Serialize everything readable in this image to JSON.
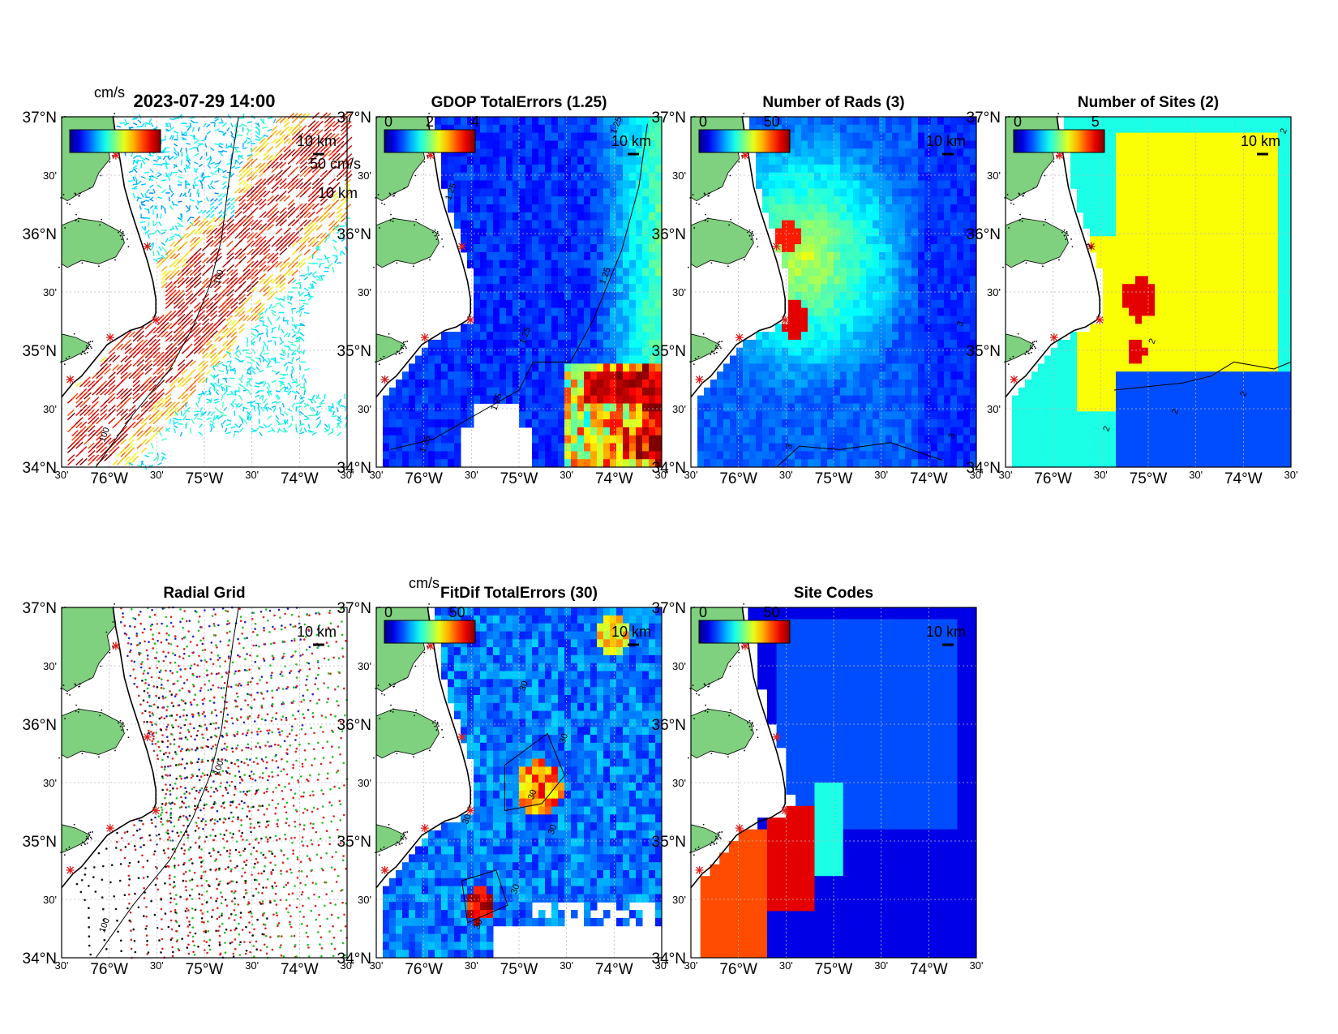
{
  "figure": {
    "timestamp": "2023-07-29 14:00"
  },
  "axes": {
    "lat_labels": [
      "37°N",
      "30'",
      "36°N",
      "30'",
      "35°N",
      "30'",
      "34°N"
    ],
    "lon_labels": [
      "30'",
      "76°W",
      "30'",
      "75°W",
      "30'",
      "74°W",
      "30'"
    ]
  },
  "map_colors": {
    "land": "#7fd07f",
    "water": "#ffffff",
    "coast": "#000000",
    "site_marker": "#e02020"
  },
  "panels": [
    {
      "id": "total-vectors",
      "title": "2023-07-29 14:00",
      "cbar_unit": "cm/s",
      "cbar_ticks": [],
      "scale_vector_label": "50 cm/s",
      "scale_km_label": "10 km",
      "contour_labels": [
        "100",
        "100"
      ],
      "content": "vectors"
    },
    {
      "id": "gdop-total-errors",
      "title": "GDOP TotalErrors (1.25)",
      "cbar_unit": "",
      "cbar_ticks": [
        "0",
        "2",
        "4"
      ],
      "scale_km_label": "10 km",
      "contour_labels": [
        "1.25",
        "1.25",
        "1.25",
        "1.25",
        "1.25",
        "1.25"
      ],
      "content": "gdop"
    },
    {
      "id": "number-of-rads",
      "title": "Number of Rads (3)",
      "cbar_unit": "",
      "cbar_ticks": [
        "0",
        "50"
      ],
      "scale_km_label": "10 km",
      "contour_labels": [
        "3",
        "3",
        "3"
      ],
      "content": "rads"
    },
    {
      "id": "number-of-sites",
      "title": "Number of Sites (2)",
      "cbar_unit": "",
      "cbar_ticks": [
        "0",
        "5"
      ],
      "scale_km_label": "10 km",
      "contour_labels": [
        "2",
        "2",
        "2",
        "2",
        "2",
        "2"
      ],
      "content": "sites"
    },
    {
      "id": "radial-grid",
      "title": "Radial Grid",
      "cbar_unit": "",
      "cbar_ticks": [],
      "scale_km_label": "10 km",
      "contour_labels": [
        "100",
        "100"
      ],
      "content": "radial"
    },
    {
      "id": "fitdif-total-errors",
      "title": "FitDif TotalErrors (30)",
      "cbar_unit": "cm/s",
      "cbar_ticks": [
        "0",
        "50"
      ],
      "scale_km_label": "10 km",
      "contour_labels": [
        "30",
        "30",
        "30",
        "30",
        "30",
        "30",
        "30"
      ],
      "content": "fitdif"
    },
    {
      "id": "site-codes",
      "title": "Site Codes",
      "cbar_unit": "",
      "cbar_ticks": [
        "0",
        "50"
      ],
      "scale_km_label": "10 km",
      "contour_labels": [],
      "content": "codes"
    }
  ]
}
